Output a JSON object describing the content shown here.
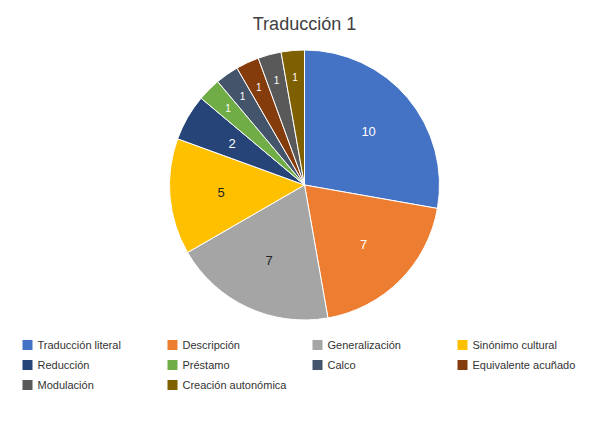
{
  "chart_data": {
    "type": "pie",
    "title": "Traducción 1",
    "categories": [
      "Traducción literal",
      "Descripción",
      "Generalización",
      "Sinónimo cultural",
      "Reducción",
      "Préstamo",
      "Calco",
      "Equivalente acuñado",
      "Modulación",
      "Creación autonómica"
    ],
    "values": [
      10,
      7,
      7,
      5,
      2,
      1,
      1,
      1,
      1,
      1
    ],
    "colors": [
      "#4472C4",
      "#ED7D31",
      "#A5A5A5",
      "#FFC000",
      "#264478",
      "#70AD47",
      "#44546A",
      "#843C0C",
      "#595959",
      "#7F6000"
    ],
    "data_labels": true,
    "legend": "bottom"
  }
}
